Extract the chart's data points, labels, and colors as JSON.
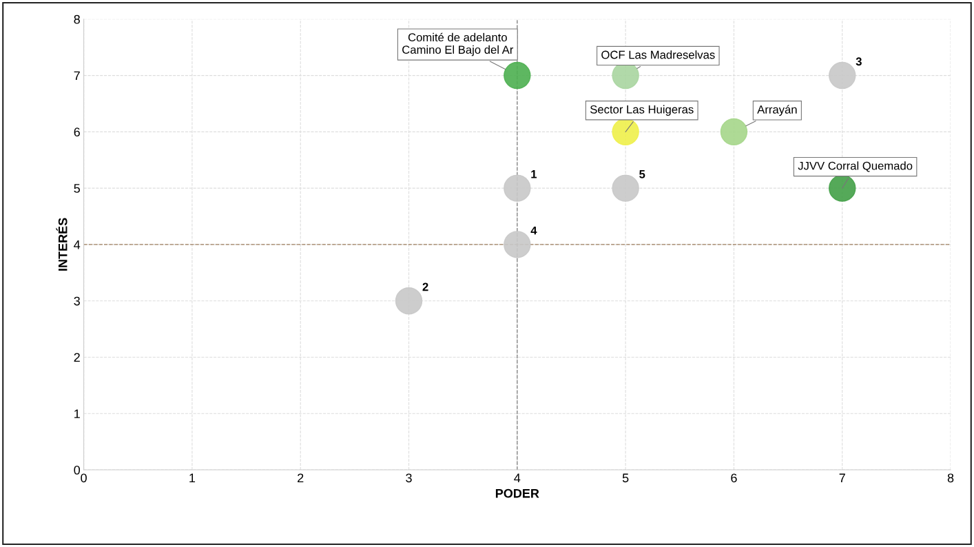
{
  "chart_data": {
    "type": "scatter",
    "xlabel": "PODER",
    "ylabel": "INTERÉS",
    "xlim": [
      0,
      8
    ],
    "ylim": [
      0,
      8
    ],
    "xticks": [
      0,
      1,
      2,
      3,
      4,
      5,
      6,
      7,
      8
    ],
    "yticks": [
      0,
      1,
      2,
      3,
      4,
      5,
      6,
      7,
      8
    ],
    "grid": true,
    "marker": "circle",
    "legend": false,
    "series": [
      {
        "name": "Comité de adelanto\nCamino El Bajo del Ar",
        "color": "#4caf50",
        "x": [
          4
        ],
        "values": [
          7
        ]
      },
      {
        "name": "OCF Las Madreselvas",
        "color": "#a8d5a0",
        "x": [
          5
        ],
        "values": [
          7
        ]
      },
      {
        "name": "Sector Las Huigeras",
        "color": "#eef04a",
        "x": [
          5
        ],
        "values": [
          6
        ]
      },
      {
        "name": "Arrayán",
        "color": "#a5d68a",
        "x": [
          6
        ],
        "values": [
          6
        ]
      },
      {
        "name": "JJVV Corral Quemado",
        "color": "#43a047",
        "x": [
          7
        ],
        "values": [
          5
        ]
      },
      {
        "name": "1",
        "color": "#c8c8c8",
        "x": [
          4
        ],
        "values": [
          5
        ]
      },
      {
        "name": "2",
        "color": "#c8c8c8",
        "x": [
          3
        ],
        "values": [
          3
        ]
      },
      {
        "name": "3",
        "color": "#c8c8c8",
        "x": [
          7
        ],
        "values": [
          7
        ]
      },
      {
        "name": "4",
        "color": "#c8c8c8",
        "x": [
          4
        ],
        "values": [
          4
        ]
      },
      {
        "name": "5",
        "color": "#c8c8c8",
        "x": [
          5
        ],
        "values": [
          5
        ]
      }
    ],
    "ref_lines": [
      {
        "axis": "x",
        "value": 4,
        "color": "#888888",
        "line_style": "dashed"
      },
      {
        "axis": "y",
        "value": 4,
        "color": "#a08060",
        "line_style": "dashed"
      }
    ]
  }
}
